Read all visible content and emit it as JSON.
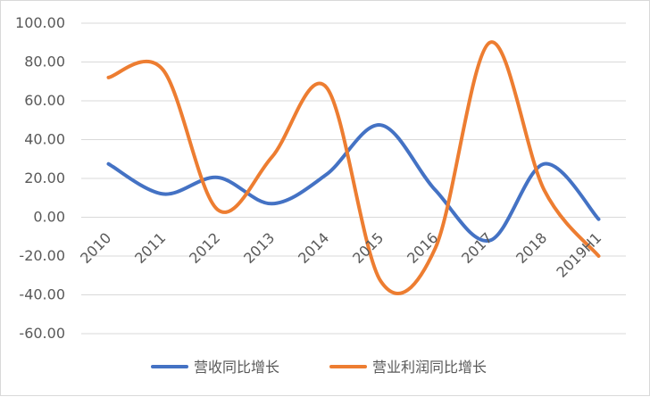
{
  "chart_data": {
    "type": "line",
    "title": "",
    "xlabel": "",
    "ylabel": "",
    "categories": [
      "2010",
      "2011",
      "2012",
      "2013",
      "2014",
      "2015",
      "2016",
      "2017",
      "2018",
      "2019H1"
    ],
    "series": [
      {
        "name": "营收同比增长",
        "color": "#4472C4",
        "values": [
          27.5,
          12.0,
          20.5,
          7.0,
          22.0,
          47.5,
          14.0,
          -12.0,
          27.5,
          -1.0
        ]
      },
      {
        "name": "营业利润同比增长",
        "color": "#ED7D31",
        "values": [
          72.0,
          76.0,
          4.0,
          31.0,
          67.0,
          -33.0,
          -16.0,
          90.0,
          14.0,
          -20.0
        ]
      }
    ],
    "ylim": [
      -60,
      100
    ],
    "y_ticks": [
      "100.00",
      "80.00",
      "60.00",
      "40.00",
      "20.00",
      "0.00",
      "-20.00",
      "-40.00",
      "-60.00"
    ],
    "grid": true,
    "smooth": true,
    "legend_position": "bottom"
  }
}
